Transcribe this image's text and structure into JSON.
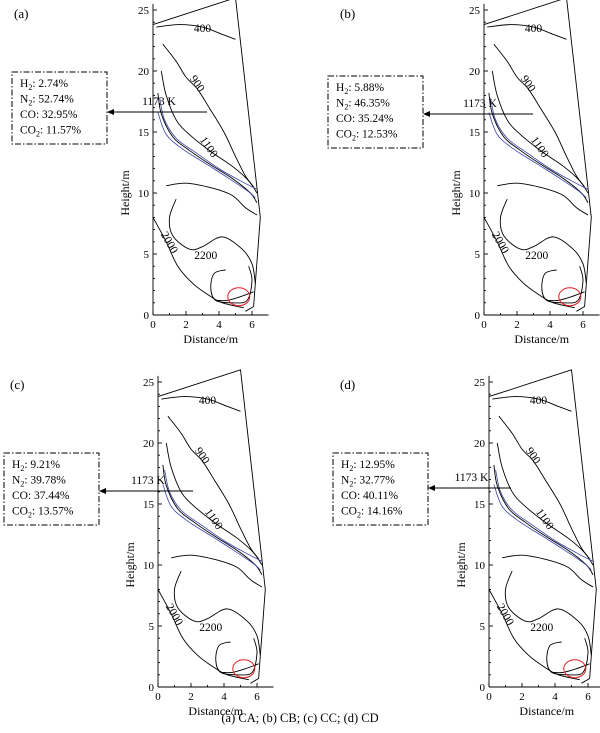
{
  "caption": "(a) CA; (b) CB; (c) CC; (d) CD",
  "axes": {
    "xlabel": "Distance/m",
    "ylabel": "Height/m",
    "xticks": [
      "0",
      "2",
      "4",
      "6"
    ],
    "yticks": [
      "0",
      "5",
      "10",
      "15",
      "20",
      "25"
    ]
  },
  "colors": {
    "contour": "#000000",
    "isotherm_1173": "#3a45a8",
    "highlight_circle": "#e02020"
  },
  "panels": [
    {
      "label": "(a)",
      "arrow_label": "1173 K",
      "contour_labels": [
        "400",
        "900",
        "1100",
        "2000",
        "2200"
      ],
      "composition": [
        {
          "species": "H",
          "sub": "2",
          "value": ": 2.74%"
        },
        {
          "species": "N",
          "sub": "2",
          "value": ": 52.74%"
        },
        {
          "species": "CO",
          "sub": "",
          "value": ": 32.95%"
        },
        {
          "species": "CO",
          "sub": "2",
          "value": ": 11.57%"
        }
      ]
    },
    {
      "label": "(b)",
      "arrow_label": "1173 K",
      "contour_labels": [
        "400",
        "900",
        "1100",
        "2000",
        "2200"
      ],
      "composition": [
        {
          "species": "H",
          "sub": "2",
          "value": ": 5.88%"
        },
        {
          "species": "N",
          "sub": "2",
          "value": ": 46.35%"
        },
        {
          "species": "CO",
          "sub": "",
          "value": ": 35.24%"
        },
        {
          "species": "CO",
          "sub": "2",
          "value": ": 12.53%"
        }
      ]
    },
    {
      "label": "(c)",
      "arrow_label": "1173 K",
      "contour_labels": [
        "400",
        "900",
        "1100",
        "2000",
        "2200"
      ],
      "composition": [
        {
          "species": "H",
          "sub": "2",
          "value": ": 9.21%"
        },
        {
          "species": "N",
          "sub": "2",
          "value": ": 39.78%"
        },
        {
          "species": "CO",
          "sub": "",
          "value": ": 37.44%"
        },
        {
          "species": "CO",
          "sub": "2",
          "value": ": 13.57%"
        }
      ]
    },
    {
      "label": "(d)",
      "arrow_label": "1173 K",
      "contour_labels": [
        "400",
        "900",
        "1100",
        "2000",
        "2200"
      ],
      "composition": [
        {
          "species": "H",
          "sub": "2",
          "value": ": 12.95%"
        },
        {
          "species": "N",
          "sub": "2",
          "value": ": 32.77%"
        },
        {
          "species": "CO",
          "sub": "",
          "value": ": 40.11%"
        },
        {
          "species": "CO",
          "sub": "2",
          "value": ": 14.16%"
        }
      ]
    }
  ]
}
